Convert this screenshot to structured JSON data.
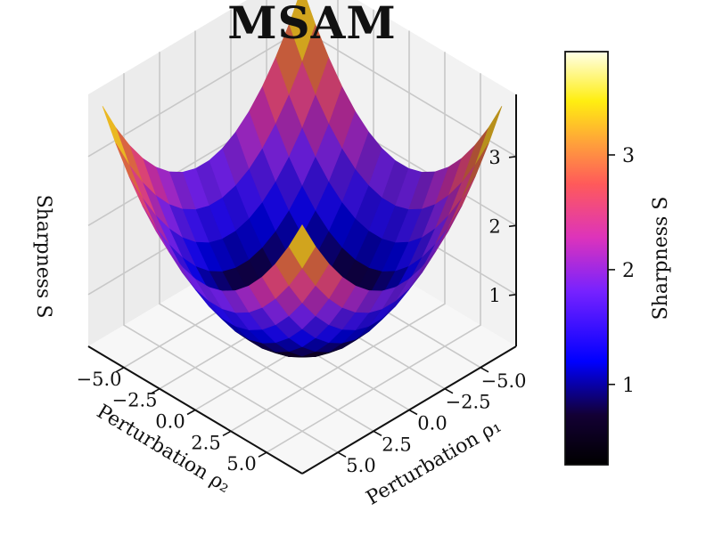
{
  "chart_data": {
    "type": "surface",
    "title": "MSAM",
    "xlabel": "Perturbation ρ₁",
    "ylabel": "Perturbation ρ₂",
    "zlabel": "Sharpness S",
    "xlim": [
      -7.5,
      7.5
    ],
    "ylim": [
      -7.5,
      7.5
    ],
    "zlim": [
      0.25,
      3.9
    ],
    "x_ticks": [
      "−5.0",
      "−2.5",
      "0.0",
      "2.5",
      "5.0"
    ],
    "x_tick_values": [
      -5,
      -2.5,
      0,
      2.5,
      5
    ],
    "y_ticks": [
      "−5.0",
      "−2.5",
      "0.0",
      "2.5",
      "5.0"
    ],
    "y_tick_values": [
      -5,
      -2.5,
      0,
      2.5,
      5
    ],
    "z_ticks": [
      "1",
      "2",
      "3"
    ],
    "z_tick_values": [
      1,
      2,
      3
    ],
    "surface": {
      "formula": "S = 0.3 + 0.035 * (rho1^2 + rho2^2)",
      "range": [
        -7,
        7
      ],
      "grid_n": 15,
      "z_min": 0.3,
      "z_max": 3.73
    },
    "colormap": "gnuplot2",
    "colorbar": {
      "label": "Sharpness S",
      "min": 0.3,
      "max": 3.9,
      "ticks": [
        "1",
        "2",
        "3"
      ],
      "tick_values": [
        1,
        2,
        3
      ]
    }
  }
}
